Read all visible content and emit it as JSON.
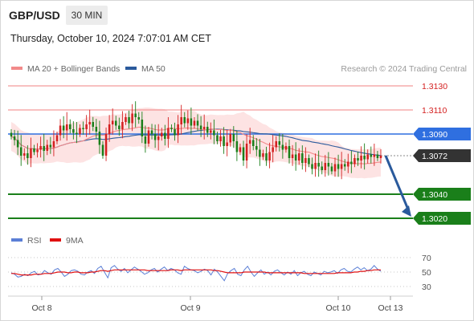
{
  "header": {
    "symbol": "GBP/USD",
    "timeframe": "30 MIN",
    "datetime": "Thursday, October 10, 2024 7:07:01 AM CET",
    "credit": "Research © 2024 Trading Central"
  },
  "legend": {
    "items": [
      {
        "label": "MA 20 + Bollinger Bands",
        "color": "#f28a8a"
      },
      {
        "label": "MA 50",
        "color": "#2a5a9c"
      }
    ],
    "rsi_items": [
      {
        "label": "RSI",
        "color": "#5b7fd6"
      },
      {
        "label": "9MA",
        "color": "#e01010"
      }
    ]
  },
  "colors": {
    "resistance": "#f08080",
    "pivot": "#2f6fe0",
    "support": "#1a7f1a",
    "current": "#333333",
    "bull_candle": "#d42020",
    "bear_candle": "#1a7f1a",
    "band_fill": "#fde3e3",
    "arrow": "#2a5a9c"
  },
  "chart_data": [
    {
      "type": "candlestick",
      "title": "GBP/USD 30 MIN",
      "x_ticks": [
        "Oct 8",
        "Oct 9",
        "Oct 10",
        "Oct 13"
      ],
      "ylim": [
        1.299,
        1.314
      ],
      "levels": [
        {
          "value": "1.3130",
          "kind": "resistance"
        },
        {
          "value": "1.3110",
          "kind": "resistance"
        },
        {
          "value": "1.3090",
          "kind": "pivot"
        },
        {
          "value": "1.3072",
          "kind": "current"
        },
        {
          "value": "1.3040",
          "kind": "support"
        },
        {
          "value": "1.3020",
          "kind": "support"
        }
      ],
      "close": [
        1.3088,
        1.3085,
        1.3079,
        1.3072,
        1.3074,
        1.307,
        1.3078,
        1.3075,
        1.3077,
        1.308,
        1.3076,
        1.3081,
        1.3079,
        1.3084,
        1.3089,
        1.3097,
        1.3093,
        1.3098,
        1.3094,
        1.3091,
        1.309,
        1.3095,
        1.3094,
        1.3098,
        1.31,
        1.3096,
        1.3092,
        1.3081,
        1.3072,
        1.309,
        1.3098,
        1.3101,
        1.3097,
        1.3094,
        1.31,
        1.3104,
        1.3099,
        1.3107,
        1.3104,
        1.3102,
        1.3088,
        1.3082,
        1.3093,
        1.309,
        1.3085,
        1.3088,
        1.3091,
        1.3086,
        1.3095,
        1.3094,
        1.3089,
        1.3098,
        1.3104,
        1.3099,
        1.3103,
        1.3097,
        1.3101,
        1.3097,
        1.3094,
        1.3096,
        1.3091,
        1.3093,
        1.3089,
        1.3084,
        1.3088,
        1.308,
        1.3083,
        1.309,
        1.3084,
        1.3075,
        1.3079,
        1.3068,
        1.3082,
        1.3085,
        1.308,
        1.3077,
        1.3071,
        1.3074,
        1.3068,
        1.3075,
        1.3079,
        1.3084,
        1.3081,
        1.3077,
        1.308,
        1.307,
        1.3073,
        1.3068,
        1.3074,
        1.3066,
        1.307,
        1.3065,
        1.3061,
        1.3066,
        1.3063,
        1.306,
        1.3066,
        1.3063,
        1.3059,
        1.3065,
        1.3061,
        1.3065,
        1.3063,
        1.3067,
        1.3065,
        1.307,
        1.3068,
        1.3072,
        1.3069,
        1.3073,
        1.3071,
        1.3073,
        1.307,
        1.3072
      ],
      "rsi": {
        "ylim": [
          20,
          80
        ],
        "ticks": [
          70,
          50,
          30
        ],
        "rsi": [
          49,
          47,
          43,
          44,
          47,
          45,
          49,
          51,
          46,
          47,
          52,
          49,
          47,
          53,
          55,
          50,
          44,
          47,
          52,
          53,
          51,
          47,
          46,
          50,
          52,
          48,
          55,
          58,
          50,
          42,
          56,
          59,
          54,
          51,
          55,
          49,
          53,
          57,
          54,
          51,
          47,
          49,
          53,
          55,
          50,
          54,
          57,
          52,
          55,
          53,
          49,
          47,
          58,
          55,
          53,
          52,
          49,
          51,
          54,
          52,
          46,
          54,
          50,
          44,
          38,
          48,
          52,
          55,
          47,
          45,
          53,
          58,
          50,
          44,
          49,
          53,
          47,
          50,
          46,
          51,
          53,
          49,
          46,
          50,
          47,
          52,
          45,
          49,
          51,
          47,
          45,
          50,
          48,
          46,
          51,
          49,
          50,
          52,
          48,
          53,
          55,
          51,
          50,
          54,
          57,
          53,
          56,
          52,
          54,
          59,
          54,
          51
        ],
        "ma9": [
          48,
          48,
          47,
          46,
          46,
          46,
          46,
          47,
          47,
          47,
          48,
          48,
          48,
          49,
          50,
          50,
          50,
          49,
          49,
          50,
          50,
          49,
          49,
          49,
          50,
          50,
          51,
          52,
          52,
          51,
          52,
          53,
          53,
          53,
          53,
          53,
          53,
          53,
          53,
          53,
          53,
          52,
          52,
          52,
          52,
          52,
          52,
          52,
          53,
          53,
          53,
          52,
          53,
          53,
          53,
          53,
          53,
          53,
          53,
          53,
          53,
          52,
          52,
          51,
          50,
          49,
          49,
          49,
          49,
          49,
          50,
          50,
          50,
          50,
          50,
          50,
          50,
          49,
          49,
          49,
          49,
          49,
          49,
          49,
          49,
          49,
          49,
          49,
          48,
          48,
          48,
          48,
          48,
          48,
          48,
          48,
          48,
          48,
          49,
          49,
          49,
          49,
          49,
          50,
          50,
          51,
          51,
          52,
          52,
          53,
          53,
          53
        ]
      }
    }
  ]
}
